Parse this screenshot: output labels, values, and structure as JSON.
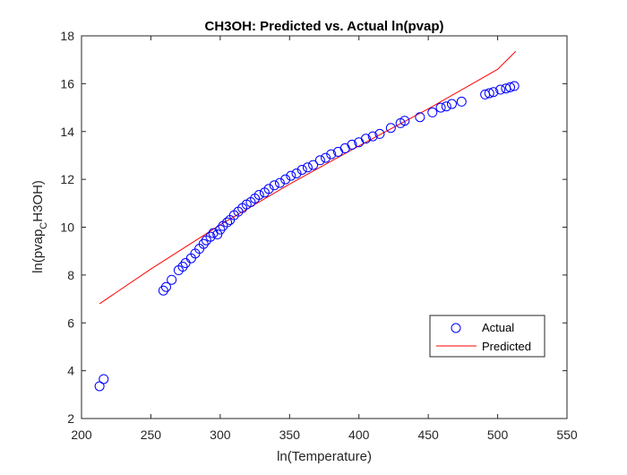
{
  "chart_data": {
    "type": "scatter",
    "title": "CH3OH: Predicted vs. Actual ln(pvap)",
    "xlabel": "ln(Temperature)",
    "ylabel": {
      "main": "ln(pvap",
      "sub": "C",
      "rest": "H3OH)"
    },
    "xlim": [
      200,
      550
    ],
    "ylim": [
      2,
      18
    ],
    "xticks": [
      200,
      250,
      300,
      350,
      400,
      450,
      500,
      550
    ],
    "yticks": [
      2,
      4,
      6,
      8,
      10,
      12,
      14,
      16,
      18
    ],
    "grid": false,
    "legend_position": "bottom-right",
    "series": [
      {
        "name": "Actual",
        "kind": "markers",
        "marker": "circle",
        "color": "#0000ff",
        "x": [
          213,
          216,
          259,
          261,
          265,
          270,
          273,
          275,
          279,
          282,
          285,
          288,
          290,
          293,
          295,
          298,
          300,
          302,
          305,
          307,
          310,
          313,
          316,
          319,
          322,
          325,
          328,
          332,
          335,
          339,
          343,
          347,
          351,
          355,
          359,
          363,
          367,
          372,
          376,
          380,
          385,
          390,
          395,
          400,
          405,
          410,
          415,
          423,
          430,
          433,
          444,
          453,
          459,
          463,
          467,
          474,
          491,
          494,
          497,
          502,
          506,
          509,
          512
        ],
        "y": [
          3.35,
          3.65,
          7.35,
          7.5,
          7.8,
          8.2,
          8.35,
          8.5,
          8.7,
          8.9,
          9.1,
          9.3,
          9.45,
          9.6,
          9.75,
          9.7,
          9.9,
          10.05,
          10.2,
          10.3,
          10.5,
          10.65,
          10.8,
          10.95,
          11.05,
          11.2,
          11.35,
          11.45,
          11.6,
          11.75,
          11.85,
          12.0,
          12.15,
          12.25,
          12.4,
          12.5,
          12.6,
          12.8,
          12.9,
          13.05,
          13.15,
          13.3,
          13.45,
          13.55,
          13.7,
          13.8,
          13.9,
          14.15,
          14.35,
          14.45,
          14.6,
          14.8,
          15.0,
          15.05,
          15.15,
          15.25,
          15.55,
          15.6,
          15.65,
          15.75,
          15.8,
          15.85,
          15.9
        ]
      },
      {
        "name": "Predicted",
        "kind": "line",
        "color": "#ff0000",
        "x": [
          213,
          250,
          300,
          350,
          400,
          450,
          500,
          513
        ],
        "y": [
          6.8,
          8.25,
          10.1,
          11.8,
          13.4,
          14.95,
          16.6,
          17.35
        ]
      }
    ]
  }
}
